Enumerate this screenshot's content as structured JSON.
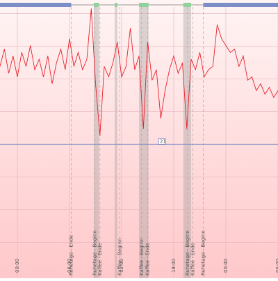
{
  "chart_data": {
    "type": "line",
    "x": [
      -2,
      -1.5,
      -1,
      -0.5,
      0,
      0.5,
      1,
      1.5,
      2,
      2.5,
      3,
      3.5,
      4,
      4.5,
      5,
      5.5,
      6,
      6.5,
      7,
      7.5,
      8,
      8.5,
      9,
      9.5,
      10,
      10.5,
      11,
      11.5,
      12,
      12.5,
      13,
      13.5,
      14,
      14.5,
      15,
      15.5,
      16,
      16.5,
      17,
      17.5,
      18,
      18.5,
      19,
      19.5,
      20,
      20.5,
      21,
      21.5,
      22,
      22.5,
      23,
      23.5,
      24,
      24.5,
      25,
      25.5,
      26,
      26.5,
      27,
      27.5,
      28,
      28.5,
      29,
      29.5,
      30
    ],
    "series": [
      {
        "color": "#e8202a",
        "values": [
          23.38,
          23.91,
          23.17,
          23.7,
          23.06,
          23.81,
          23.38,
          24.02,
          23.28,
          23.6,
          23.06,
          23.7,
          22.85,
          23.49,
          23.91,
          23.28,
          24.23,
          23.38,
          23.81,
          23.28,
          23.6,
          25.15,
          22.85,
          21.26,
          23.38,
          23.06,
          23.49,
          24.13,
          23.06,
          23.38,
          24.55,
          23.28,
          23.7,
          21.47,
          24.13,
          22.96,
          23.28,
          21.79,
          22.64,
          23.28,
          23.7,
          23.17,
          23.49,
          21.47,
          23.6,
          23.28,
          23.81,
          23.06,
          23.28,
          23.38,
          24.66,
          24.23,
          24.02,
          23.81,
          23.91,
          23.38,
          23.7,
          22.96,
          23.06,
          22.64,
          22.85,
          22.53,
          22.74,
          22.43,
          22.64
        ]
      }
    ],
    "xlim": [
      -2,
      30
    ],
    "xticks": [
      {
        "value": 0,
        "label": "00:00"
      },
      {
        "value": 6,
        "label": "06:00"
      },
      {
        "value": 12,
        "label": "12:00"
      },
      {
        "value": 18,
        "label": "18:00"
      },
      {
        "value": 24,
        "label": "00:00"
      },
      {
        "value": 30,
        "label": "06:00"
      }
    ],
    "ylim": [
      16.9,
      25.2
    ],
    "yticks": [
      18,
      19,
      20,
      21,
      22,
      23,
      24,
      25
    ],
    "grid": true,
    "threshold": 21,
    "events": [
      {
        "x": 6.2,
        "label": "Ruhetage - Ende"
      },
      {
        "x": 8.9,
        "label": "Ruhetage - Beginn"
      },
      {
        "x": 9.5,
        "label": "Kaffee - Ende"
      },
      {
        "x": 11.8,
        "label": "Kaffee - Beginn"
      },
      {
        "x": 14.3,
        "label": "Kaffee - Beginn"
      },
      {
        "x": 15.0,
        "label": "Kaffee - Ende"
      },
      {
        "x": 19.6,
        "label": "Ruhetage - Beginn"
      },
      {
        "x": 20.2,
        "label": "Kaffee - Ende"
      },
      {
        "x": 21.4,
        "label": "Ruhetage - Beginn"
      }
    ],
    "bands": [
      [
        8.8,
        9.4
      ],
      [
        11.2,
        11.5
      ],
      [
        14.0,
        15.1
      ],
      [
        19.1,
        20.0
      ]
    ],
    "rest_periods": [
      [
        -2,
        6.2
      ],
      [
        21.4,
        30
      ]
    ]
  }
}
